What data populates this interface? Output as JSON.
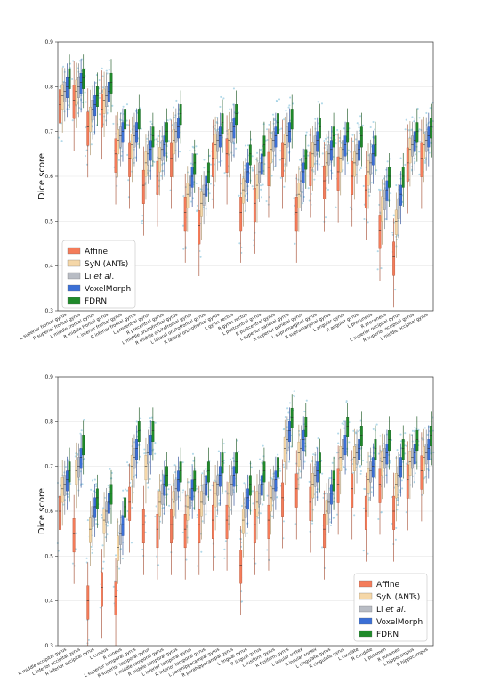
{
  "chart_data": [
    {
      "type": "box",
      "ylabel": "Dice score",
      "ylim": [
        0.3,
        0.9
      ],
      "yticks": [
        "0.3",
        "0.4",
        "0.5",
        "0.6",
        "0.7",
        "0.8",
        "0.9"
      ],
      "legend": {
        "placement": "lower-left",
        "entries": [
          {
            "parts": [
              "Affine"
            ],
            "color": "#f47c5a"
          },
          {
            "parts": [
              "SyN (ANTs)"
            ],
            "color": "#f5d7a8"
          },
          {
            "parts": [
              "Li ",
              "et al",
              "."
            ],
            "color": "#b8bcc4"
          },
          {
            "parts": [
              "VoxelMorph"
            ],
            "color": "#3b6fd6"
          },
          {
            "parts": [
              "FDRN"
            ],
            "color": "#1f8a2a"
          }
        ]
      },
      "categories": [
        "L superior frontal gyrus",
        "R superior frontal gyrus",
        "L middle frontal gyrus",
        "R middle frontal gyrus",
        "L inferior frontal gyrus",
        "R inferior frontal gyrus",
        "L precentral gyrus",
        "R precentral gyrus",
        "L middle orbitofrontal gyrus",
        "R middle orbitofrontal gyrus",
        "L lateral orbitofrontal gyrus",
        "R lateral orbitofrontal gyrus",
        "L gyrus rectus",
        "R gyrus rectus",
        "L postcentral gyrus",
        "R postcentral gyrus",
        "L superior parietal gyrus",
        "R superior parietal gyrus",
        "L supramarginal gyrus",
        "R supramarginal gyrus",
        "L angular gyrus",
        "R angular gyrus",
        "L precuneus",
        "R precuneus",
        "L superior occipital gyrus",
        "R superior occipital gyrus",
        "L middle occipital gyrus"
      ],
      "series": [
        {
          "name": "Affine",
          "values": [
            0.76,
            0.77,
            0.71,
            0.75,
            0.65,
            0.64,
            0.58,
            0.6,
            0.64,
            0.52,
            0.49,
            0.64,
            0.65,
            0.52,
            0.54,
            0.62,
            0.64,
            0.52,
            0.62,
            0.59,
            0.61,
            0.6,
            0.57,
            0.48,
            0.42,
            0.63,
            0.64
          ]
        },
        {
          "name": "SyN (ANTs)",
          "values": [
            0.78,
            0.79,
            0.73,
            0.77,
            0.68,
            0.67,
            0.63,
            0.64,
            0.68,
            0.56,
            0.54,
            0.67,
            0.68,
            0.57,
            0.58,
            0.66,
            0.67,
            0.56,
            0.65,
            0.63,
            0.64,
            0.63,
            0.61,
            0.53,
            0.5,
            0.66,
            0.67
          ]
        },
        {
          "name": "Li et al.",
          "values": [
            0.79,
            0.8,
            0.75,
            0.78,
            0.69,
            0.69,
            0.65,
            0.66,
            0.7,
            0.58,
            0.56,
            0.68,
            0.7,
            0.59,
            0.61,
            0.68,
            0.69,
            0.59,
            0.67,
            0.65,
            0.66,
            0.65,
            0.63,
            0.55,
            0.53,
            0.67,
            0.68
          ]
        },
        {
          "name": "VoxelMorph",
          "values": [
            0.8,
            0.81,
            0.76,
            0.79,
            0.7,
            0.7,
            0.66,
            0.67,
            0.71,
            0.6,
            0.58,
            0.69,
            0.71,
            0.61,
            0.63,
            0.69,
            0.7,
            0.61,
            0.68,
            0.66,
            0.67,
            0.66,
            0.65,
            0.57,
            0.56,
            0.68,
            0.69
          ]
        },
        {
          "name": "FDRN",
          "values": [
            0.82,
            0.82,
            0.78,
            0.81,
            0.73,
            0.73,
            0.69,
            0.7,
            0.74,
            0.63,
            0.61,
            0.72,
            0.74,
            0.65,
            0.67,
            0.72,
            0.73,
            0.64,
            0.71,
            0.69,
            0.7,
            0.69,
            0.67,
            0.6,
            0.6,
            0.7,
            0.71
          ]
        }
      ]
    },
    {
      "type": "box",
      "ylabel": "Dice score",
      "ylim": [
        0.3,
        0.9
      ],
      "yticks": [
        "0.3",
        "0.4",
        "0.5",
        "0.6",
        "0.7",
        "0.8",
        "0.9"
      ],
      "legend": {
        "placement": "lower-right",
        "entries": [
          {
            "parts": [
              "Affine"
            ],
            "color": "#f47c5a"
          },
          {
            "parts": [
              "SyN (ANTs)"
            ],
            "color": "#f5d7a8"
          },
          {
            "parts": [
              "Li ",
              "et al",
              "."
            ],
            "color": "#b8bcc4"
          },
          {
            "parts": [
              "VoxelMorph"
            ],
            "color": "#3b6fd6"
          },
          {
            "parts": [
              "FDRN"
            ],
            "color": "#1f8a2a"
          }
        ]
      },
      "categories": [
        "R middle occipital gyrus",
        "L inferior occipital gyrus",
        "R inferior occipital gyrus",
        "L cuneus",
        "R cuneus",
        "L superior temporal gyrus",
        "R superior temporal gyrus",
        "L middle temporal gyrus",
        "R middle temporal gyrus",
        "L inferior temporal gyrus",
        "R inferior temporal gyrus",
        "L parahippocampal gyrus",
        "R parahippocampal gyrus",
        "L lingual gyrus",
        "R lingual gyrus",
        "L fusiform gyrus",
        "R fusiform gyrus",
        "L insular cortex",
        "R insular cortex",
        "L cingulate gyrus",
        "R cingulate gyrus",
        "L caudate",
        "R caudate",
        "L putamen",
        "R putamen",
        "L hippocampus",
        "R hippocampus"
      ],
      "series": [
        {
          "name": "Affine",
          "values": [
            0.6,
            0.55,
            0.4,
            0.43,
            0.41,
            0.62,
            0.57,
            0.56,
            0.57,
            0.56,
            0.57,
            0.58,
            0.58,
            0.48,
            0.57,
            0.58,
            0.63,
            0.65,
            0.62,
            0.56,
            0.66,
            0.65,
            0.6,
            0.66,
            0.6,
            0.67,
            0.69
          ]
        },
        {
          "name": "SyN (ANTs)",
          "values": [
            0.65,
            0.69,
            0.56,
            0.58,
            0.52,
            0.7,
            0.7,
            0.62,
            0.62,
            0.61,
            0.62,
            0.64,
            0.64,
            0.58,
            0.62,
            0.63,
            0.74,
            0.73,
            0.66,
            0.6,
            0.72,
            0.72,
            0.67,
            0.71,
            0.66,
            0.71,
            0.72
          ]
        },
        {
          "name": "Li et al.",
          "values": [
            0.66,
            0.7,
            0.59,
            0.6,
            0.55,
            0.72,
            0.73,
            0.64,
            0.65,
            0.63,
            0.64,
            0.66,
            0.66,
            0.61,
            0.64,
            0.65,
            0.76,
            0.74,
            0.68,
            0.62,
            0.74,
            0.73,
            0.69,
            0.72,
            0.68,
            0.72,
            0.73
          ]
        },
        {
          "name": "VoxelMorph",
          "values": [
            0.67,
            0.72,
            0.61,
            0.62,
            0.57,
            0.74,
            0.75,
            0.66,
            0.67,
            0.65,
            0.66,
            0.68,
            0.68,
            0.63,
            0.66,
            0.67,
            0.78,
            0.76,
            0.69,
            0.64,
            0.75,
            0.74,
            0.7,
            0.73,
            0.7,
            0.73,
            0.74
          ]
        },
        {
          "name": "FDRN",
          "values": [
            0.69,
            0.75,
            0.63,
            0.64,
            0.61,
            0.78,
            0.78,
            0.68,
            0.69,
            0.67,
            0.69,
            0.71,
            0.71,
            0.66,
            0.69,
            0.7,
            0.81,
            0.79,
            0.71,
            0.67,
            0.79,
            0.77,
            0.74,
            0.76,
            0.74,
            0.76,
            0.77
          ]
        }
      ]
    }
  ]
}
